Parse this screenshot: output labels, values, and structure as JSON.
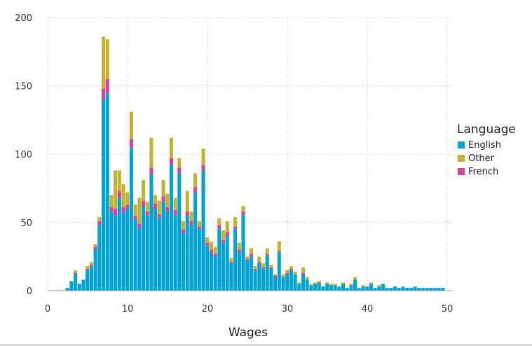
{
  "chart_data": {
    "type": "bar",
    "stacked": true,
    "title": "",
    "xlabel": "Wages",
    "ylabel": "",
    "xlim": [
      0,
      50
    ],
    "ylim": [
      0,
      200
    ],
    "xticks": [
      0,
      10,
      20,
      30,
      40,
      50
    ],
    "yticks": [
      0,
      50,
      100,
      150,
      200
    ],
    "grid": true,
    "bin_width": 0.5,
    "legend": {
      "title": "Language",
      "position": "right"
    },
    "x": [
      2.5,
      3,
      3.5,
      4,
      4.5,
      5,
      5.5,
      6,
      6.5,
      7,
      7.5,
      8,
      8.5,
      9,
      9.5,
      10,
      10.5,
      11,
      11.5,
      12,
      12.5,
      13,
      13.5,
      14,
      14.5,
      15,
      15.5,
      16,
      16.5,
      17,
      17.5,
      18,
      18.5,
      19,
      19.5,
      20,
      20.5,
      21,
      21.5,
      22,
      22.5,
      23,
      23.5,
      24,
      24.5,
      25,
      25.5,
      26,
      26.5,
      27,
      27.5,
      28,
      28.5,
      29,
      29.5,
      30,
      30.5,
      31,
      31.5,
      32,
      32.5,
      33,
      33.5,
      34,
      34.5,
      35,
      35.5,
      36,
      36.5,
      37,
      37.5,
      38,
      38.5,
      39,
      39.5,
      40,
      40.5,
      41,
      41.5,
      42,
      42.5,
      43,
      43.5,
      44,
      44.5,
      45,
      45.5,
      46,
      46.5,
      47,
      47.5,
      48,
      48.5,
      49,
      49.5
    ],
    "series": [
      {
        "name": "English",
        "color": "#00a3d4",
        "values": [
          2,
          7,
          12,
          5,
          8,
          15,
          18,
          30,
          48,
          140,
          145,
          58,
          55,
          68,
          57,
          60,
          105,
          52,
          46,
          62,
          55,
          85,
          60,
          53,
          65,
          58,
          92,
          55,
          86,
          42,
          55,
          48,
          72,
          45,
          88,
          33,
          28,
          25,
          45,
          35,
          40,
          20,
          45,
          28,
          55,
          22,
          25,
          15,
          20,
          16,
          26,
          16,
          10,
          28,
          10,
          12,
          15,
          12,
          5,
          12,
          8,
          4,
          5,
          6,
          3,
          5,
          4,
          4,
          3,
          5,
          2,
          4,
          8,
          2,
          3,
          3,
          5,
          2,
          3,
          5,
          2,
          2,
          3,
          2,
          3,
          2,
          2,
          3,
          2,
          2,
          2,
          2,
          2,
          2,
          2
        ]
      },
      {
        "name": "French",
        "color": "#d94399",
        "values": [
          0,
          0,
          1,
          0,
          0,
          1,
          1,
          2,
          3,
          8,
          10,
          3,
          5,
          5,
          4,
          3,
          6,
          3,
          3,
          4,
          3,
          5,
          4,
          3,
          4,
          3,
          5,
          4,
          4,
          3,
          3,
          3,
          4,
          2,
          4,
          2,
          2,
          2,
          3,
          2,
          3,
          1,
          2,
          2,
          3,
          1,
          2,
          1,
          1,
          1,
          1,
          1,
          1,
          1,
          0,
          1,
          1,
          0,
          0,
          1,
          0,
          0,
          0,
          0,
          0,
          0,
          0,
          0,
          0,
          0,
          0,
          0,
          0,
          0,
          0,
          0,
          0,
          0,
          0,
          0,
          0,
          0,
          0,
          0,
          0,
          0,
          0,
          0,
          0,
          0,
          0,
          0,
          0,
          0,
          0
        ]
      },
      {
        "name": "Other",
        "color": "#c4b235",
        "values": [
          0,
          0,
          2,
          0,
          0,
          2,
          2,
          2,
          3,
          38,
          29,
          9,
          28,
          15,
          17,
          9,
          20,
          8,
          19,
          15,
          7,
          22,
          6,
          10,
          12,
          10,
          15,
          9,
          7,
          6,
          15,
          7,
          10,
          4,
          12,
          4,
          6,
          5,
          5,
          7,
          8,
          3,
          7,
          5,
          4,
          2,
          4,
          2,
          4,
          3,
          4,
          2,
          1,
          7,
          2,
          2,
          2,
          2,
          1,
          4,
          2,
          1,
          1,
          1,
          0,
          1,
          1,
          1,
          0,
          1,
          0,
          1,
          2,
          0,
          1,
          0,
          1,
          0,
          1,
          0,
          0,
          0,
          0,
          0,
          0,
          0,
          0,
          0,
          0,
          0,
          0,
          0,
          0,
          0,
          0
        ]
      }
    ]
  }
}
